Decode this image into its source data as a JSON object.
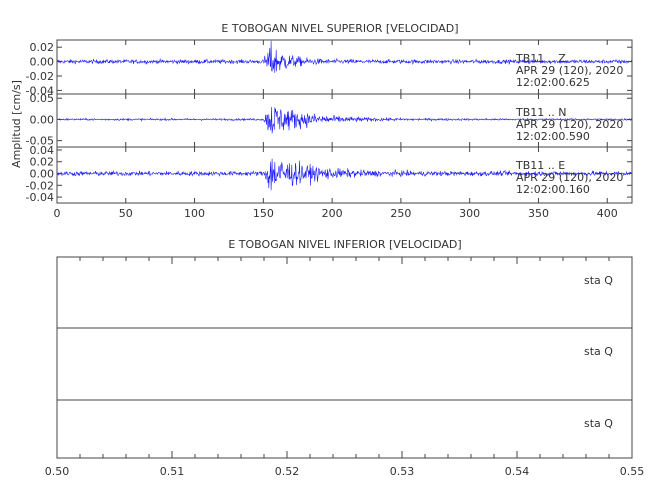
{
  "colors": {
    "trace": "#1a1aff",
    "axis": "#444444",
    "text": "#333333"
  },
  "chart_data": [
    {
      "type": "line",
      "title": "E TOBOGAN NIVEL SUPERIOR [VELOCIDAD]",
      "ylabel": "Amplitud [cm/s]",
      "xlim": [
        0,
        418
      ],
      "x_ticks": [
        0,
        50,
        100,
        150,
        200,
        250,
        300,
        350,
        400
      ],
      "grid": false,
      "signal": {
        "event_onset": 150,
        "event_peak": 155,
        "samples_per_unit": 3
      },
      "panels": [
        {
          "name": "Z",
          "label_lines": [
            "TB11 .. Z",
            "APR 29 (120), 2020",
            "12:02:00.625"
          ],
          "ylim": [
            -0.045,
            0.03
          ],
          "y_ticks": [
            0.02,
            0.0,
            -0.02,
            -0.04
          ],
          "y_tick_labels": [
            "0.02",
            "0.00",
            "-0.02",
            "-0.04"
          ],
          "noise_amp": 0.0025,
          "peak_amp": 0.022
        },
        {
          "name": "N",
          "label_lines": [
            "TB11 .. N",
            "APR 29 (120), 2020",
            "12:02:00.590"
          ],
          "ylim": [
            -0.065,
            0.06
          ],
          "y_ticks": [
            0.05,
            0.0,
            -0.05
          ],
          "y_tick_labels": [
            "0.05",
            "0.00",
            "-0.05"
          ],
          "noise_amp": 0.002,
          "peak_amp": 0.038
        },
        {
          "name": "E",
          "label_lines": [
            "TB11 .. E",
            "APR 29 (120), 2020",
            "12:02:00.160"
          ],
          "ylim": [
            -0.05,
            0.045
          ],
          "y_ticks": [
            0.04,
            0.02,
            0.0,
            -0.02,
            -0.04
          ],
          "y_tick_labels": [
            "0.04",
            "0.02",
            "0.00",
            "-0.02",
            "-0.04"
          ],
          "noise_amp": 0.0035,
          "peak_amp": 0.03
        }
      ]
    },
    {
      "type": "line",
      "title": "E TOBOGAN NIVEL INFERIOR [VELOCIDAD]",
      "ylabel": "",
      "xlim": [
        0.5,
        0.55
      ],
      "x_ticks": [
        0.5,
        0.51,
        0.52,
        0.53,
        0.54,
        0.55
      ],
      "x_tick_labels": [
        "0.50",
        "0.51",
        "0.52",
        "0.53",
        "0.54",
        "0.55"
      ],
      "grid": false,
      "panels": [
        {
          "name": "sta Q 1",
          "label": "sta  Q"
        },
        {
          "name": "sta Q 2",
          "label": "sta  Q"
        },
        {
          "name": "sta Q 3",
          "label": "sta  Q"
        }
      ]
    }
  ]
}
